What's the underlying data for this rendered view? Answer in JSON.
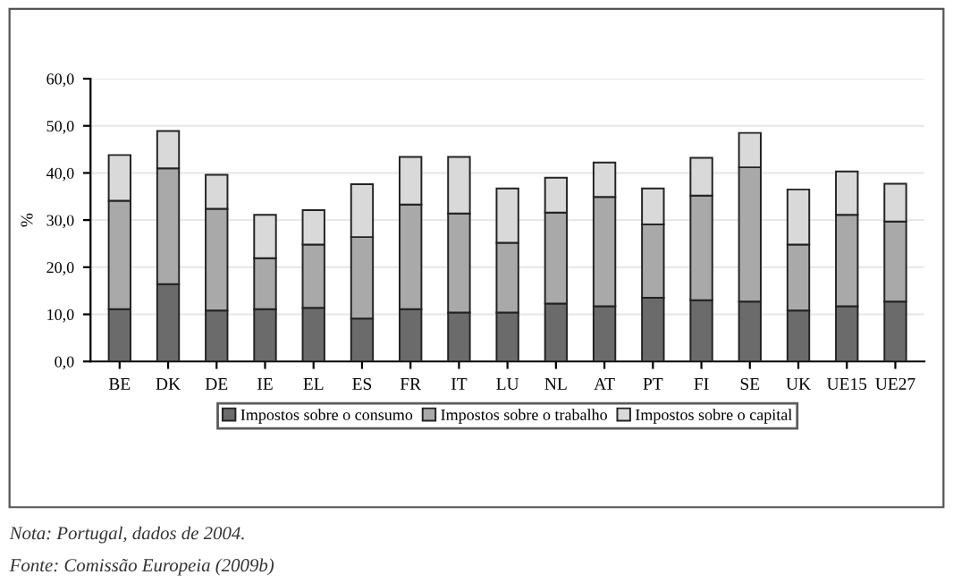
{
  "chart_data": {
    "type": "bar",
    "stacked": true,
    "ylabel": "%",
    "categories": [
      "BE",
      "DK",
      "DE",
      "IE",
      "EL",
      "ES",
      "FR",
      "IT",
      "LU",
      "NL",
      "AT",
      "PT",
      "FI",
      "SE",
      "UK",
      "UE15",
      "UE27"
    ],
    "series": [
      {
        "name": "Impostos sobre o consumo",
        "color": "#6b6b6b",
        "values": [
          11.1,
          16.4,
          10.8,
          11.1,
          11.4,
          9.1,
          11.1,
          10.4,
          10.4,
          12.3,
          11.7,
          13.5,
          13.0,
          12.7,
          10.8,
          11.7,
          12.7
        ]
      },
      {
        "name": "Impostos sobre o trabalho",
        "color": "#a9a9a9",
        "values": [
          23.0,
          24.6,
          21.6,
          10.8,
          13.4,
          17.3,
          22.2,
          21.0,
          14.8,
          19.3,
          23.2,
          15.6,
          22.2,
          28.5,
          14.0,
          19.4,
          17.0
        ]
      },
      {
        "name": "Impostos sobre o capital",
        "color": "#d9d9d9",
        "values": [
          9.7,
          7.9,
          7.2,
          9.2,
          7.3,
          11.2,
          10.1,
          12.0,
          11.5,
          7.4,
          7.3,
          7.6,
          8.0,
          7.3,
          11.7,
          9.2,
          8.0
        ]
      }
    ],
    "ylim": [
      0,
      60
    ],
    "yticks": [
      {
        "value": 0,
        "label": "0,0"
      },
      {
        "value": 10,
        "label": "10,0"
      },
      {
        "value": 20,
        "label": "20,0"
      },
      {
        "value": 30,
        "label": "30,0"
      },
      {
        "value": 40,
        "label": "40,0"
      },
      {
        "value": 50,
        "label": "50,0"
      },
      {
        "value": 60,
        "label": "60,0"
      }
    ],
    "grid": "y",
    "legend": "bottom",
    "annotations": [
      "Nota: Portugal, dados de 2004.",
      "Fonte: Comissão Europeia (2009b)"
    ]
  }
}
